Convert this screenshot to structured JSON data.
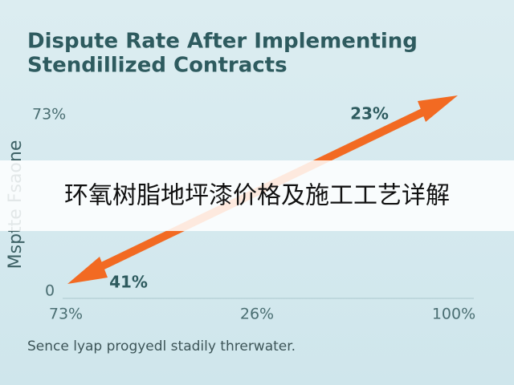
{
  "title": {
    "line1": "Dispute Rate After Implementing",
    "line2": "Stendillized Contracts"
  },
  "y_axis": {
    "label": "Msptte Fsaone",
    "ticks": [
      "73%",
      "0"
    ]
  },
  "x_axis": {
    "ticks": [
      "73%",
      "26%",
      "100%"
    ]
  },
  "annotations": [
    "23%",
    "41%"
  ],
  "banner": "环氧树脂地坪漆价格及施工工艺详解",
  "caption": "Sence lyap progyedl stadily threrwater."
}
